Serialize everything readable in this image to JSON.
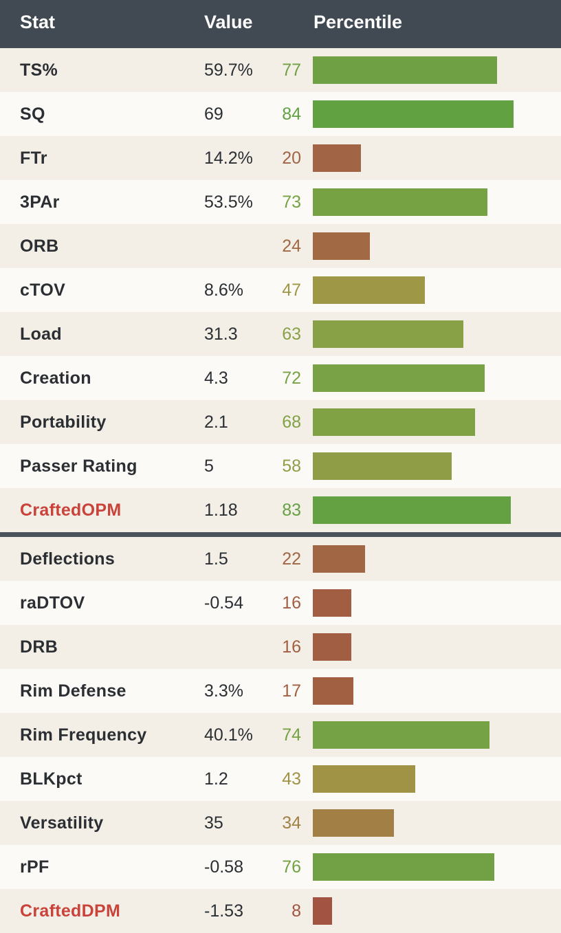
{
  "header": {
    "stat": "Stat",
    "value": "Value",
    "percentile": "Percentile"
  },
  "colors": {
    "header_bg": "#414952",
    "highlight_text": "#c9433b",
    "high": "#5fa142",
    "mid": "#a1a047",
    "low": "#a06b45",
    "very_low": "#a34e42"
  },
  "offense": [
    {
      "stat": "TS%",
      "value": "59.7%",
      "percentile": "77",
      "pct_value": 77,
      "highlight": false
    },
    {
      "stat": "SQ",
      "value": "69",
      "percentile": "84",
      "pct_value": 84,
      "highlight": false
    },
    {
      "stat": "FTr",
      "value": "14.2%",
      "percentile": "20",
      "pct_value": 20,
      "highlight": false
    },
    {
      "stat": "3PAr",
      "value": "53.5%",
      "percentile": "73",
      "pct_value": 73,
      "highlight": false
    },
    {
      "stat": "ORB",
      "value": "",
      "percentile": "24",
      "pct_value": 24,
      "highlight": false
    },
    {
      "stat": "cTOV",
      "value": "8.6%",
      "percentile": "47",
      "pct_value": 47,
      "highlight": false
    },
    {
      "stat": "Load",
      "value": "31.3",
      "percentile": "63",
      "pct_value": 63,
      "highlight": false
    },
    {
      "stat": "Creation",
      "value": "4.3",
      "percentile": "72",
      "pct_value": 72,
      "highlight": false
    },
    {
      "stat": "Portability",
      "value": "2.1",
      "percentile": "68",
      "pct_value": 68,
      "highlight": false
    },
    {
      "stat": "Passer Rating",
      "value": "5",
      "percentile": "58",
      "pct_value": 58,
      "highlight": false
    },
    {
      "stat": "CraftedOPM",
      "value": "1.18",
      "percentile": "83",
      "pct_value": 83,
      "highlight": true
    }
  ],
  "defense": [
    {
      "stat": "Deflections",
      "value": "1.5",
      "percentile": "22",
      "pct_value": 22,
      "highlight": false
    },
    {
      "stat": "raDTOV",
      "value": "-0.54",
      "percentile": "16",
      "pct_value": 16,
      "highlight": false
    },
    {
      "stat": "DRB",
      "value": "",
      "percentile": "16",
      "pct_value": 16,
      "highlight": false
    },
    {
      "stat": "Rim Defense",
      "value": "3.3%",
      "percentile": "17",
      "pct_value": 17,
      "highlight": false
    },
    {
      "stat": "Rim Frequency",
      "value": "40.1%",
      "percentile": "74",
      "pct_value": 74,
      "highlight": false
    },
    {
      "stat": "BLKpct",
      "value": "1.2",
      "percentile": "43",
      "pct_value": 43,
      "highlight": false
    },
    {
      "stat": "Versatility",
      "value": "35",
      "percentile": "34",
      "pct_value": 34,
      "highlight": false
    },
    {
      "stat": "rPF",
      "value": "-0.58",
      "percentile": "76",
      "pct_value": 76,
      "highlight": false
    },
    {
      "stat": "CraftedDPM",
      "value": "-1.53",
      "percentile": "8",
      "pct_value": 8,
      "highlight": true
    }
  ]
}
